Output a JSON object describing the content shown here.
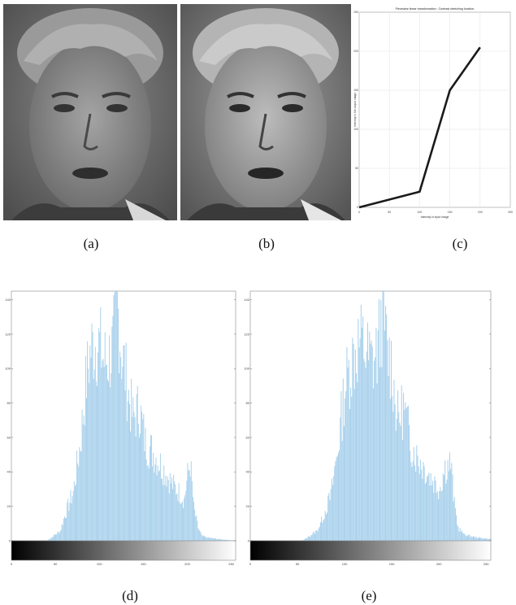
{
  "captions": {
    "a": "(a)",
    "b": "(b)",
    "c": "(c)",
    "d": "(d)",
    "e": "(e)"
  },
  "colors": {
    "bar": "#a9d1ec",
    "line": "#1a1a1a",
    "grid": "#e6e6e6",
    "axis": "#555555"
  },
  "chart_data": [
    {
      "id": "c",
      "type": "line",
      "title": "Piecewise linear transformation : Contrast stretching function",
      "xlabel": "Intensity in input image",
      "ylabel": "Intensity in the output image",
      "x": [
        0,
        100,
        150,
        200
      ],
      "y": [
        0,
        20,
        150,
        205
      ],
      "xlim": [
        0,
        250
      ],
      "ylim": [
        0,
        250
      ],
      "xticks": [
        "0",
        "50",
        "100",
        "150",
        "200",
        "250"
      ],
      "yticks": [
        "0",
        "50",
        "100",
        "150",
        "200",
        "250"
      ],
      "grid": true
    },
    {
      "id": "d",
      "type": "bar",
      "title": "",
      "xlim": [
        0,
        255
      ],
      "ylim": [
        0,
        145
      ],
      "xticks": [
        "0",
        "50",
        "100",
        "150",
        "200",
        "250"
      ],
      "yticks": [
        "0",
        "20",
        "40",
        "60",
        "80",
        "100",
        "120",
        "140"
      ],
      "envelope_x": [
        0,
        40,
        45,
        55,
        60,
        70,
        78,
        85,
        90,
        95,
        100,
        105,
        110,
        115,
        120,
        125,
        128,
        132,
        138,
        145,
        152,
        160,
        168,
        175,
        182,
        190,
        196,
        200,
        203,
        207,
        212,
        216,
        222,
        235,
        255
      ],
      "envelope_y": [
        0,
        0,
        2,
        6,
        15,
        30,
        60,
        100,
        118,
        122,
        120,
        110,
        112,
        118,
        145,
        115,
        108,
        92,
        75,
        82,
        60,
        55,
        48,
        42,
        35,
        30,
        25,
        40,
        48,
        20,
        8,
        3,
        2,
        1,
        0
      ],
      "colorbar": true
    },
    {
      "id": "e",
      "type": "bar",
      "title": "",
      "xlim": [
        0,
        255
      ],
      "ylim": [
        0,
        145
      ],
      "xticks": [
        "0",
        "50",
        "100",
        "150",
        "200",
        "250"
      ],
      "yticks": [
        "0",
        "20",
        "40",
        "60",
        "80",
        "100",
        "120",
        "140"
      ],
      "envelope_x": [
        0,
        55,
        60,
        70,
        75,
        85,
        92,
        100,
        108,
        115,
        120,
        125,
        130,
        135,
        140,
        145,
        150,
        152,
        156,
        162,
        170,
        176,
        184,
        192,
        200,
        206,
        212,
        216,
        220,
        226,
        232,
        240,
        255
      ],
      "envelope_y": [
        0,
        0,
        2,
        6,
        12,
        28,
        55,
        95,
        112,
        122,
        120,
        112,
        110,
        118,
        145,
        115,
        108,
        92,
        75,
        82,
        60,
        52,
        45,
        38,
        32,
        45,
        48,
        22,
        8,
        4,
        3,
        2,
        1
      ],
      "colorbar": true
    }
  ]
}
